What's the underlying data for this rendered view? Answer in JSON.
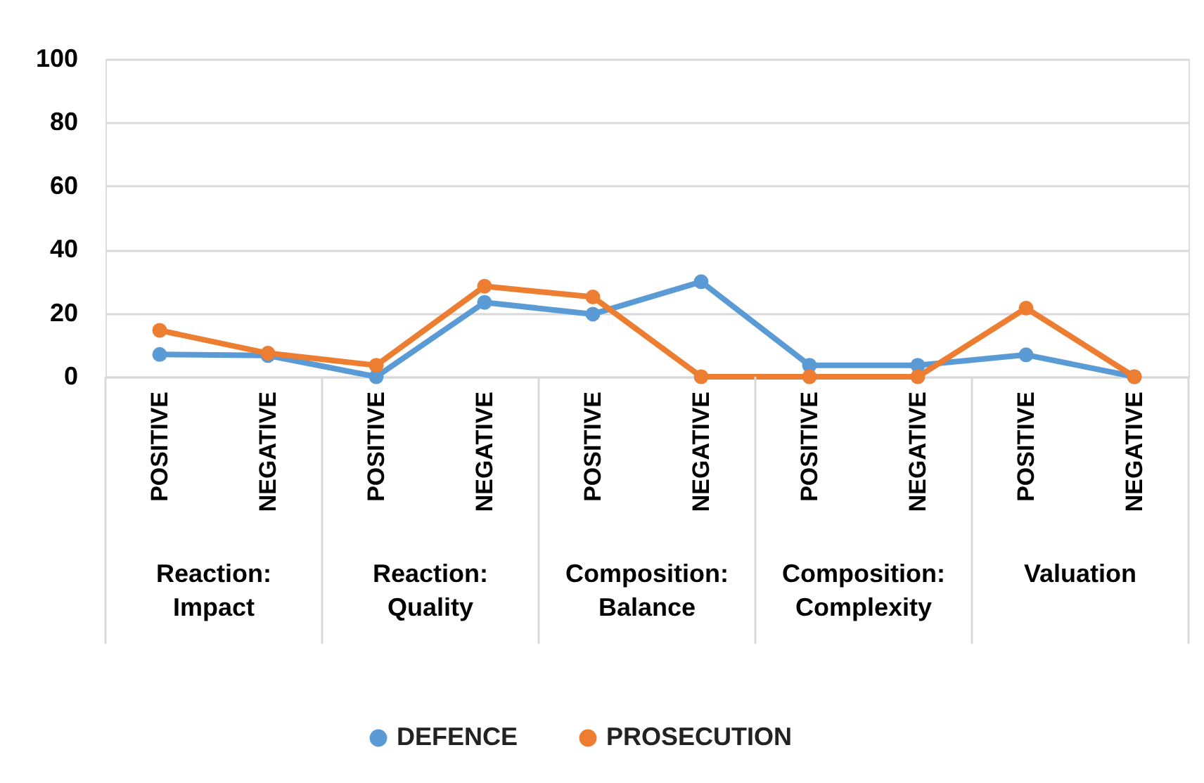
{
  "chart_data": {
    "type": "line",
    "categories": [
      "POSITIVE",
      "NEGATIVE",
      "POSITIVE",
      "NEGATIVE",
      "POSITIVE",
      "NEGATIVE",
      "POSITIVE",
      "NEGATIVE",
      "POSITIVE",
      "NEGATIVE"
    ],
    "annotations": [
      "Reaction: Impact",
      "Reaction: Quality",
      "Composition: Balance",
      "Composition: Complexity",
      "Valuation"
    ],
    "series": [
      {
        "name": "DEFENCE",
        "color": "#5b9bd5",
        "values": [
          7.0,
          6.7,
          0,
          23.4,
          19.7,
          29.9,
          3.6,
          3.6,
          6.9,
          0
        ]
      },
      {
        "name": "PROSECUTION",
        "color": "#ed7d31",
        "values": [
          14.6,
          7.4,
          3.6,
          28.5,
          25.1,
          0,
          0,
          0,
          21.6,
          0
        ]
      }
    ],
    "ylim": [
      0,
      100
    ],
    "yticks": [
      0,
      20,
      40,
      60,
      80,
      100
    ],
    "grid": "y",
    "legend": "bottom",
    "marker": "circle",
    "line_style": "solid"
  }
}
